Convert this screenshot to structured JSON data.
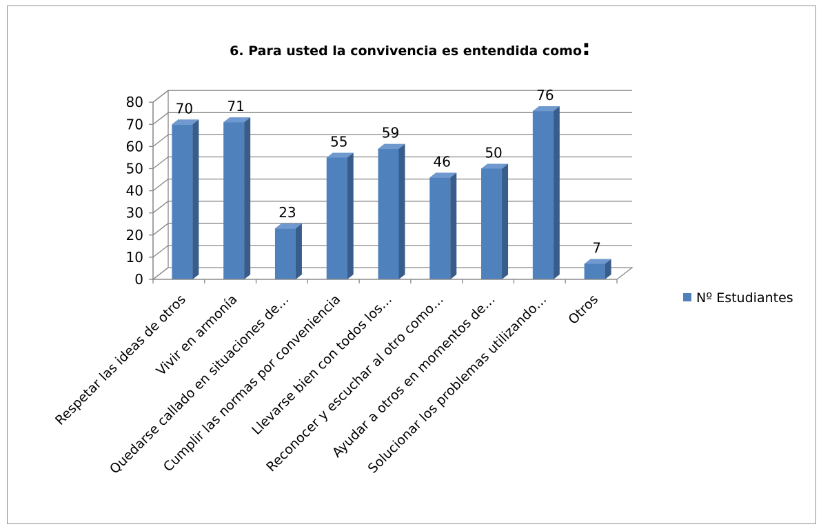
{
  "chart_data": {
    "type": "bar",
    "title": "6. Para usted la convivencia es entendida como",
    "title_suffix": ":",
    "categories": [
      "Respetar las ideas de otros",
      "Vivir en armonía",
      "Quedarse callado en situaciones de…",
      "Cumplir las normas por conveniencia",
      "Llevarse bien con todos los…",
      "Reconocer y escuchar al otro como…",
      "Ayudar a otros en momentos de…",
      "Solucionar los problemas utilizando…",
      "Otros"
    ],
    "series": [
      {
        "name": "Nº Estudiantes",
        "values": [
          70,
          71,
          23,
          55,
          59,
          46,
          50,
          76,
          7
        ]
      }
    ],
    "ylim": [
      0,
      80
    ],
    "yticks": [
      0,
      10,
      20,
      30,
      40,
      50,
      60,
      70,
      80
    ],
    "grid": true,
    "legend": "right",
    "data_labels": true,
    "xlabel": "",
    "ylabel": "",
    "colors": {
      "bar_front": "#4f81bd",
      "bar_side": "#385d8a",
      "bar_top": "#6f99cf",
      "grid": "#868686"
    }
  }
}
